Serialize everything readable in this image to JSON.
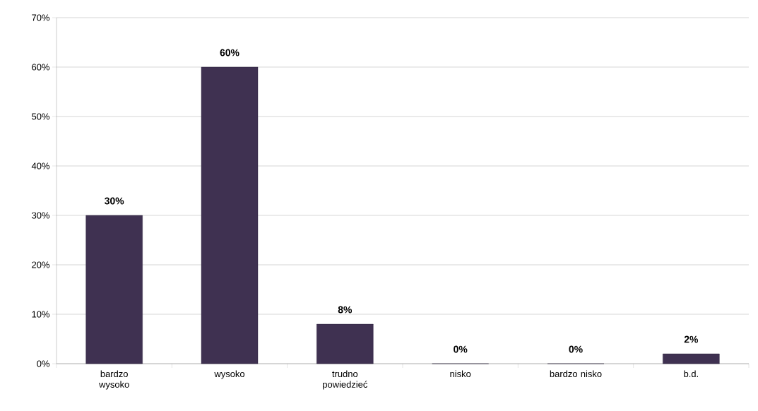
{
  "chart_data": {
    "type": "bar",
    "categories": [
      "bardzo wysoko",
      "wysoko",
      "trudno powiedzieć",
      "nisko",
      "bardzo nisko",
      "b.d."
    ],
    "values": [
      30,
      60,
      8,
      0,
      0,
      2
    ],
    "value_labels": [
      "30%",
      "60%",
      "8%",
      "0%",
      "0%",
      "2%"
    ],
    "color": "#3f3151",
    "ylim": [
      0,
      70
    ],
    "yticks": [
      {
        "value": 0,
        "label": "0%"
      },
      {
        "value": 10,
        "label": "10%"
      },
      {
        "value": 20,
        "label": "20%"
      },
      {
        "value": 30,
        "label": "30%"
      },
      {
        "value": 40,
        "label": "40%"
      },
      {
        "value": 50,
        "label": "50%"
      },
      {
        "value": 60,
        "label": "60%"
      },
      {
        "value": 70,
        "label": "70%"
      }
    ],
    "grid": "y"
  }
}
